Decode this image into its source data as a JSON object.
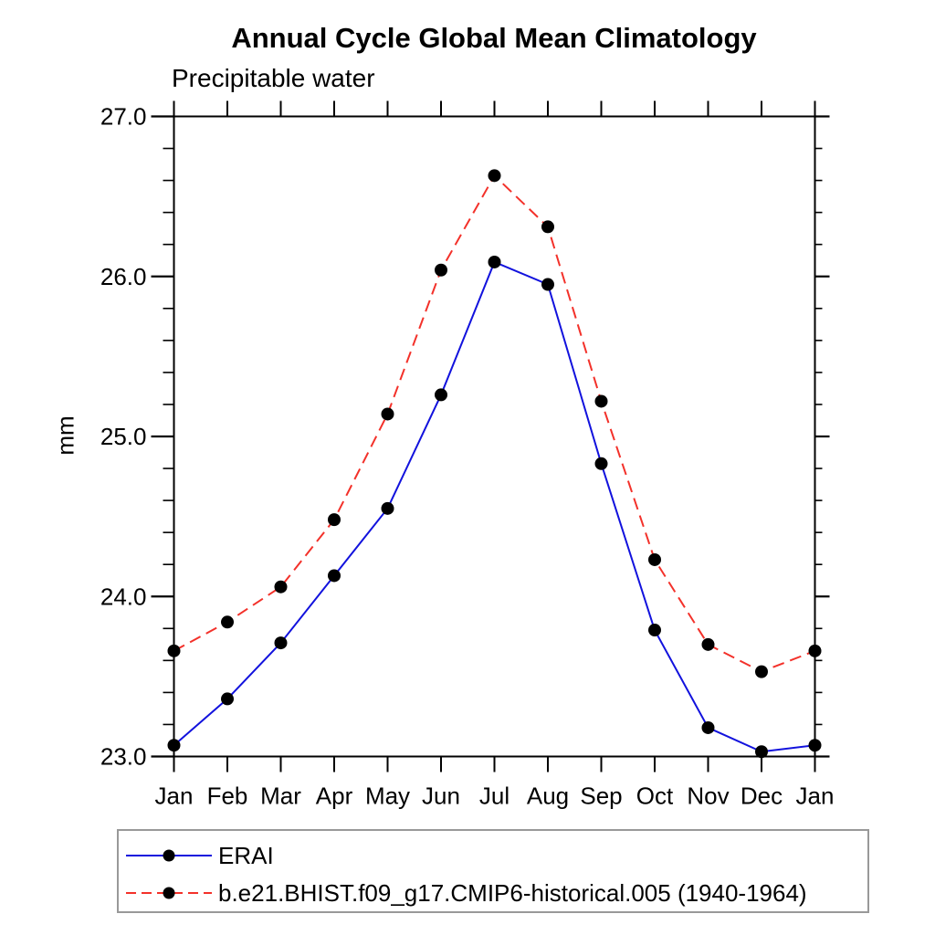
{
  "title": "Annual Cycle Global Mean Climatology",
  "subtitle": "Precipitable water",
  "chart_data": {
    "type": "line",
    "title": "Annual Cycle Global Mean Climatology",
    "subtitle": "Precipitable water",
    "ylabel": "mm",
    "xlabel": "",
    "categories": [
      "Jan",
      "Feb",
      "Mar",
      "Apr",
      "May",
      "Jun",
      "Jul",
      "Aug",
      "Sep",
      "Oct",
      "Nov",
      "Dec",
      "Jan"
    ],
    "ylim": [
      23.0,
      27.0
    ],
    "ytick_major": [
      23.0,
      24.0,
      25.0,
      26.0,
      27.0
    ],
    "ytick_labels": [
      "23.0",
      "24.0",
      "25.0",
      "26.0",
      "27.0"
    ],
    "ytick_minor_step": 0.2,
    "grid": false,
    "legend_position": "bottom",
    "axis_color": "#000000",
    "marker": "filled-circle",
    "marker_color": "#000000",
    "series": [
      {
        "name": "ERAI",
        "color": "#1212dd",
        "style": "solid",
        "values": [
          23.07,
          23.36,
          23.71,
          24.13,
          24.55,
          25.26,
          26.09,
          25.95,
          24.83,
          23.79,
          23.18,
          23.03,
          23.07
        ]
      },
      {
        "name": "b.e21.BHIST.f09_g17.CMIP6-historical.005 (1940-1964)",
        "color": "#f3312a",
        "style": "dashed",
        "values": [
          23.66,
          23.84,
          24.06,
          24.48,
          25.14,
          26.04,
          26.63,
          26.31,
          25.22,
          24.23,
          23.7,
          23.53,
          23.66
        ]
      }
    ]
  }
}
